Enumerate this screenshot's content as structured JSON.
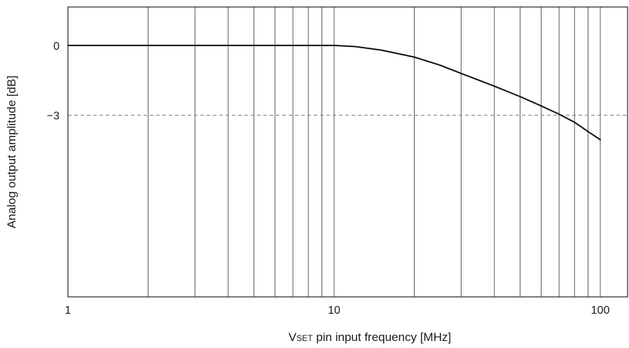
{
  "chart_data": {
    "type": "line",
    "title": "",
    "xlabel": {
      "prefix": "V",
      "subscript": "SET",
      "suffix": " pin input frequency [MHz]"
    },
    "ylabel": "Analog output amplitude [dB]",
    "x_scale": "log",
    "xlim": [
      1,
      120
    ],
    "ylim": [
      -10.8,
      1.65
    ],
    "x_ticks": [
      1,
      10,
      100
    ],
    "x_tick_labels": [
      "1",
      "10",
      "100"
    ],
    "y_ticks": [
      0,
      -3
    ],
    "y_tick_labels": [
      "0",
      "−3"
    ],
    "grid": {
      "vertical": "log-minor",
      "horizontal": false
    },
    "reference_line": {
      "y": -3,
      "style": "dashed"
    },
    "series": [
      {
        "x": [
          1,
          2,
          5,
          8,
          10,
          12,
          15,
          20,
          25,
          30,
          40,
          50,
          60,
          70,
          80,
          90,
          100
        ],
        "values": [
          0,
          0,
          0,
          0,
          0,
          -0.05,
          -0.2,
          -0.5,
          -0.85,
          -1.2,
          -1.75,
          -2.2,
          -2.6,
          -2.95,
          -3.3,
          -3.7,
          -4.05
        ]
      }
    ],
    "colors": {
      "curve": "#111111",
      "grid": "#444444",
      "reference": "#777777",
      "frame": "#222222"
    }
  }
}
